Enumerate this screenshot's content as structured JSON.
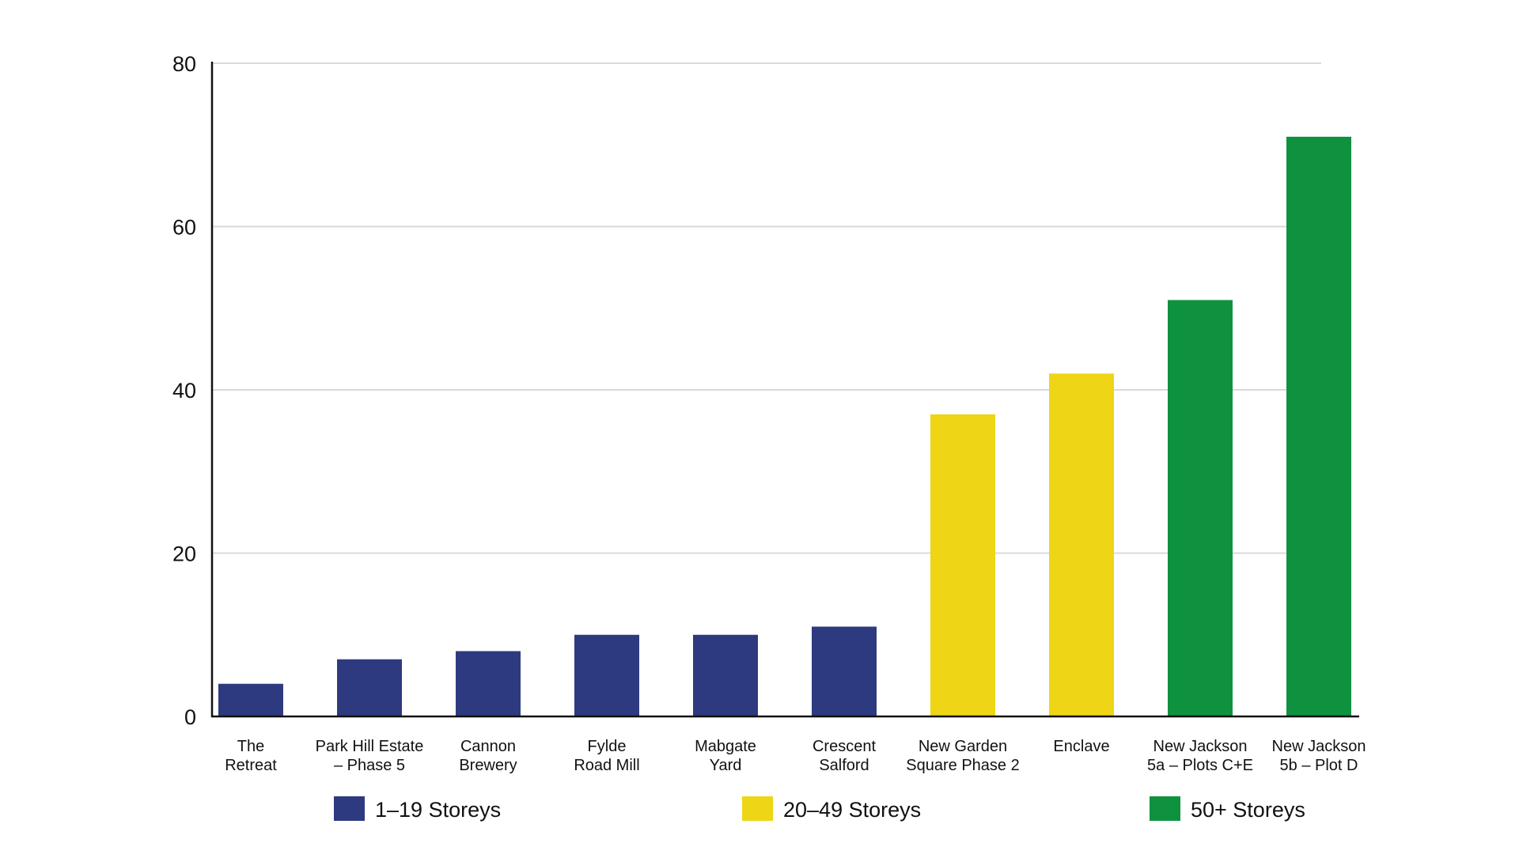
{
  "chart_data": {
    "type": "bar",
    "title": "",
    "xlabel": "",
    "ylabel": "",
    "ylim": [
      0,
      80
    ],
    "yticks": [
      0,
      20,
      40,
      60,
      80
    ],
    "grid": true,
    "legend_position": "bottom",
    "categories": [
      [
        "The",
        "Retreat"
      ],
      [
        "Park Hill Estate",
        "– Phase 5"
      ],
      [
        "Cannon",
        "Brewery"
      ],
      [
        "Fylde",
        "Road Mill"
      ],
      [
        "Mabgate",
        "Yard"
      ],
      [
        "Crescent",
        "Salford"
      ],
      [
        "New Garden",
        "Square Phase 2"
      ],
      [
        "Enclave"
      ],
      [
        "New Jackson",
        "5a – Plots C+E"
      ],
      [
        "New Jackson",
        "5b – Plot D"
      ]
    ],
    "values": [
      4,
      7,
      8,
      10,
      10,
      11,
      37,
      42,
      51,
      71
    ],
    "bar_groups": [
      0,
      0,
      0,
      0,
      0,
      0,
      1,
      1,
      2,
      2
    ],
    "legend": [
      {
        "label": "1–19 Storeys",
        "color": "#2e3a7f"
      },
      {
        "label": "20–49 Storeys",
        "color": "#eed516"
      },
      {
        "label": "50+ Storeys",
        "color": "#0f923f"
      }
    ]
  }
}
